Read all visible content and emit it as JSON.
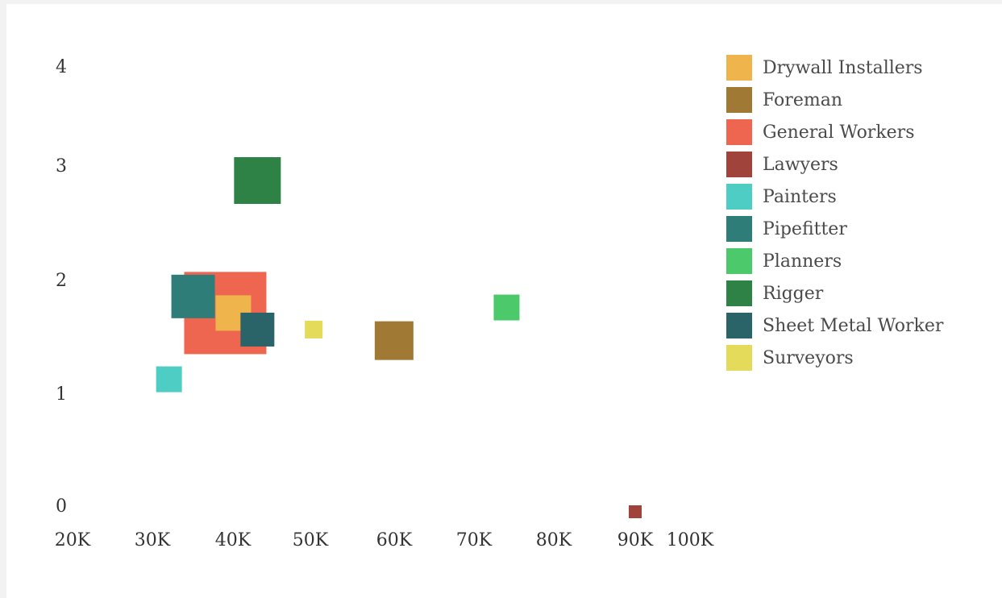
{
  "chart_data": {
    "type": "scatter",
    "marker": "square",
    "x_ticks": [
      "20K",
      "30K",
      "40K",
      "50K",
      "60K",
      "70K",
      "80K",
      "90K",
      "100K"
    ],
    "y_ticks": [
      "0",
      "1",
      "2",
      "3",
      "4"
    ],
    "series": [
      {
        "name": "Drywall Installers",
        "color": "#F0B44C",
        "x": 40000,
        "y": 1.8,
        "size": 44
      },
      {
        "name": "Foreman",
        "color": "#A07A34",
        "x": 60000,
        "y": 1.55,
        "size": 48
      },
      {
        "name": "General Workers",
        "color": "#EE6650",
        "x": 39000,
        "y": 1.8,
        "size": 102
      },
      {
        "name": "Lawyers",
        "color": "#A0433A",
        "x": 90000,
        "y": 0.0,
        "size": 16
      },
      {
        "name": "Painters",
        "color": "#4ECDC4",
        "x": 32000,
        "y": 1.2,
        "size": 32
      },
      {
        "name": "Pipefitter",
        "color": "#2E7D78",
        "x": 35000,
        "y": 1.95,
        "size": 54
      },
      {
        "name": "Planners",
        "color": "#4CC96A",
        "x": 74000,
        "y": 1.85,
        "size": 32
      },
      {
        "name": "Rigger",
        "color": "#2F8246",
        "x": 43000,
        "y": 3.0,
        "size": 58
      },
      {
        "name": "Sheet Metal Worker",
        "color": "#2B6468",
        "x": 43000,
        "y": 1.65,
        "size": 42
      },
      {
        "name": "Surveyors",
        "color": "#E5DB5B",
        "x": 50000,
        "y": 1.65,
        "size": 22
      }
    ]
  }
}
